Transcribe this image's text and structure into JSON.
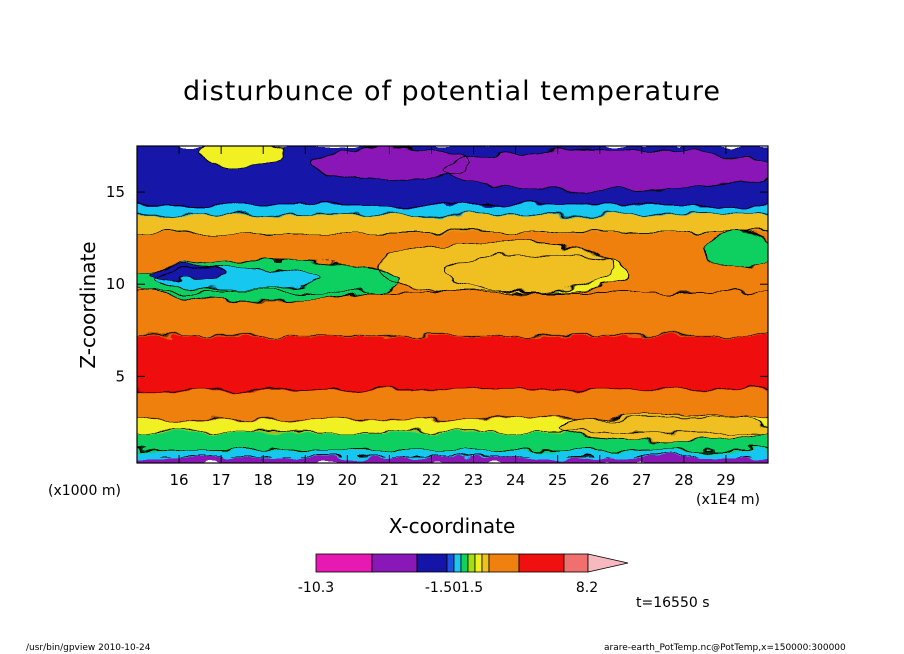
{
  "chart_data": {
    "type": "heatmap",
    "title": "disturbunce of potential temperature",
    "xlabel": "X-coordinate",
    "ylabel": "Z-coordinate",
    "x_unit": "(x1E4 m)",
    "y_unit": "(x1000 m)",
    "x_ticks": [
      16,
      17,
      18,
      19,
      20,
      21,
      22,
      23,
      24,
      25,
      26,
      27,
      28,
      29
    ],
    "y_ticks": [
      5,
      10,
      15
    ],
    "xlim": [
      15,
      30
    ],
    "ylim": [
      0.3,
      17.5
    ],
    "colorbar": {
      "labels": [
        {
          "text": "-10.3",
          "value": -10.3
        },
        {
          "text": "-1.50",
          "value": -1.5
        },
        {
          "text": "1.5",
          "value": 1.5
        },
        {
          "text": "8.2",
          "value": 8.2
        }
      ],
      "colors": [
        "#e61ab3",
        "#8a18b8",
        "#1414a8",
        "#1d50e0",
        "#18c8f0",
        "#10d060",
        "#a0e010",
        "#f0f020",
        "#f0c020",
        "#f08010",
        "#f01010",
        "#f07070",
        "#f8b8c0"
      ]
    },
    "bands": [
      {
        "z_bottom": 0.3,
        "z_top": 0.6,
        "color": "#8a18b8"
      },
      {
        "z_bottom": 0.6,
        "z_top": 1.0,
        "color": "#18c8f0"
      },
      {
        "z_bottom": 1.0,
        "z_top": 2.0,
        "color": "#10d060"
      },
      {
        "z_bottom": 2.0,
        "z_top": 2.7,
        "color": "#f0f020"
      },
      {
        "z_bottom": 2.7,
        "z_top": 4.3,
        "color": "#f08010"
      },
      {
        "z_bottom": 4.3,
        "z_top": 7.2,
        "color": "#f01010"
      },
      {
        "z_bottom": 7.2,
        "z_top": 9.6,
        "color": "#f08010"
      },
      {
        "z_bottom": 9.6,
        "z_top": 12.8,
        "color": "#f08010"
      },
      {
        "z_bottom": 12.8,
        "z_top": 13.8,
        "color": "#f0c020"
      },
      {
        "z_bottom": 13.8,
        "z_top": 14.3,
        "color": "#18c8f0"
      },
      {
        "z_bottom": 14.3,
        "z_top": 17.5,
        "color": "#1414a8"
      }
    ],
    "features": [
      {
        "x": 24.5,
        "z": 10.6,
        "rx": 2.2,
        "rz": 1.0,
        "color": "#f0f020"
      },
      {
        "x": 23.5,
        "z": 10.9,
        "rx": 2.8,
        "rz": 1.4,
        "color": "#f0c020"
      },
      {
        "x": 18.0,
        "z": 10.2,
        "rx": 3.2,
        "rz": 1.1,
        "color": "#10d060"
      },
      {
        "x": 17.4,
        "z": 10.3,
        "rx": 2.0,
        "rz": 0.6,
        "color": "#18c8f0"
      },
      {
        "x": 16.2,
        "z": 10.6,
        "rx": 0.9,
        "rz": 0.4,
        "color": "#1414a8"
      },
      {
        "x": 21.0,
        "z": 16.5,
        "rx": 1.9,
        "rz": 0.9,
        "color": "#8a18b8"
      },
      {
        "x": 26.2,
        "z": 16.2,
        "rx": 4.0,
        "rz": 1.1,
        "color": "#8a18b8"
      },
      {
        "x": 17.5,
        "z": 17.2,
        "rx": 1.0,
        "rz": 0.8,
        "color": "#f0f020"
      },
      {
        "x": 29.3,
        "z": 11.8,
        "rx": 0.8,
        "rz": 1.0,
        "color": "#10d060"
      },
      {
        "x": 27.5,
        "z": 2.2,
        "rx": 2.5,
        "rz": 0.7,
        "color": "#f0c020"
      }
    ]
  },
  "annotations": {
    "time": "t=16550 s",
    "footer_left": "/usr/bin/gpview   2010-10-24",
    "footer_right": "arare-earth_PotTemp.nc@PotTemp,x=150000:300000"
  }
}
